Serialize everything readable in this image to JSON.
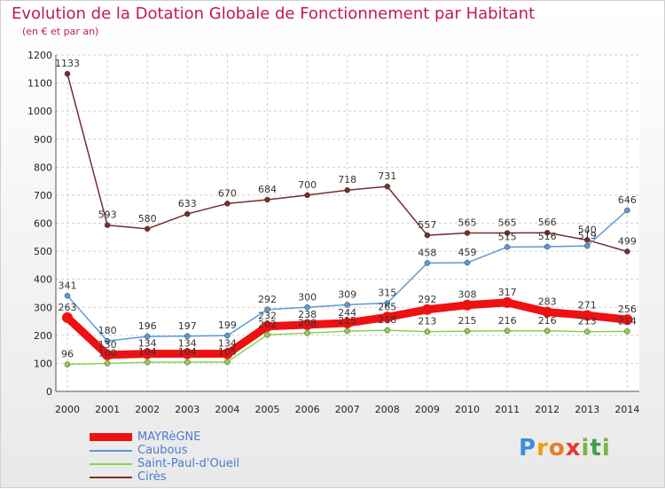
{
  "header": {
    "title": "Evolution de la Dotation Globale de Fonctionnement par Habitant",
    "subtitle": "(en € et par an)"
  },
  "logo": {
    "letters": [
      "P",
      "r",
      "o",
      "x",
      "i",
      "t",
      "i"
    ]
  },
  "chart_data": {
    "type": "line",
    "x": [
      "2000",
      "2001",
      "2002",
      "2003",
      "2004",
      "2005",
      "2006",
      "2007",
      "2008",
      "2009",
      "2010",
      "2011",
      "2012",
      "2013",
      "2014"
    ],
    "ylim": [
      0,
      1200
    ],
    "yticks": [
      0,
      100,
      200,
      300,
      400,
      500,
      600,
      700,
      800,
      900,
      1000,
      1100,
      1200
    ],
    "grid": true,
    "legend_position": "bottom-left",
    "series": [
      {
        "name": "MAYRèGNE",
        "color": "#ee1111",
        "values": [
          263,
          130,
          134,
          134,
          134,
          232,
          238,
          244,
          265,
          292,
          308,
          317,
          283,
          271,
          256
        ],
        "labels": [
          "263",
          "130",
          "134",
          "134",
          "134",
          "232",
          "238",
          "244",
          "265",
          "292",
          "308",
          "317",
          "283",
          "271",
          "256"
        ]
      },
      {
        "name": "Caubous",
        "color": "#5b9bd5",
        "values": [
          341,
          180,
          196,
          197,
          199,
          292,
          300,
          309,
          315,
          458,
          459,
          515,
          516,
          519,
          646
        ],
        "labels": [
          "341",
          "180",
          "196",
          "197",
          "199",
          "292",
          "300",
          "309",
          "315",
          "458",
          "459",
          "515",
          "516",
          "519",
          "646"
        ]
      },
      {
        "name": "Saint-Paul-d'Oueil",
        "color": "#8fd14f",
        "values": [
          96,
          100,
          104,
          104,
          105,
          202,
          208,
          215,
          218,
          213,
          215,
          216,
          216,
          213,
          214
        ],
        "labels": [
          "96",
          "100",
          "104",
          "104",
          "105",
          "202",
          "208",
          "215",
          "218",
          "213",
          "215",
          "216",
          "216",
          "213",
          "214"
        ]
      },
      {
        "name": "Cirès",
        "color": "#7b2c2c",
        "values": [
          1133,
          593,
          580,
          633,
          670,
          684,
          700,
          718,
          731,
          557,
          565,
          565,
          566,
          540,
          499
        ],
        "labels": [
          "1133",
          "593",
          "580",
          "633",
          "670",
          "684",
          "700",
          "718",
          "731",
          "557",
          "565",
          "565",
          "566",
          "540",
          "499"
        ]
      }
    ]
  }
}
